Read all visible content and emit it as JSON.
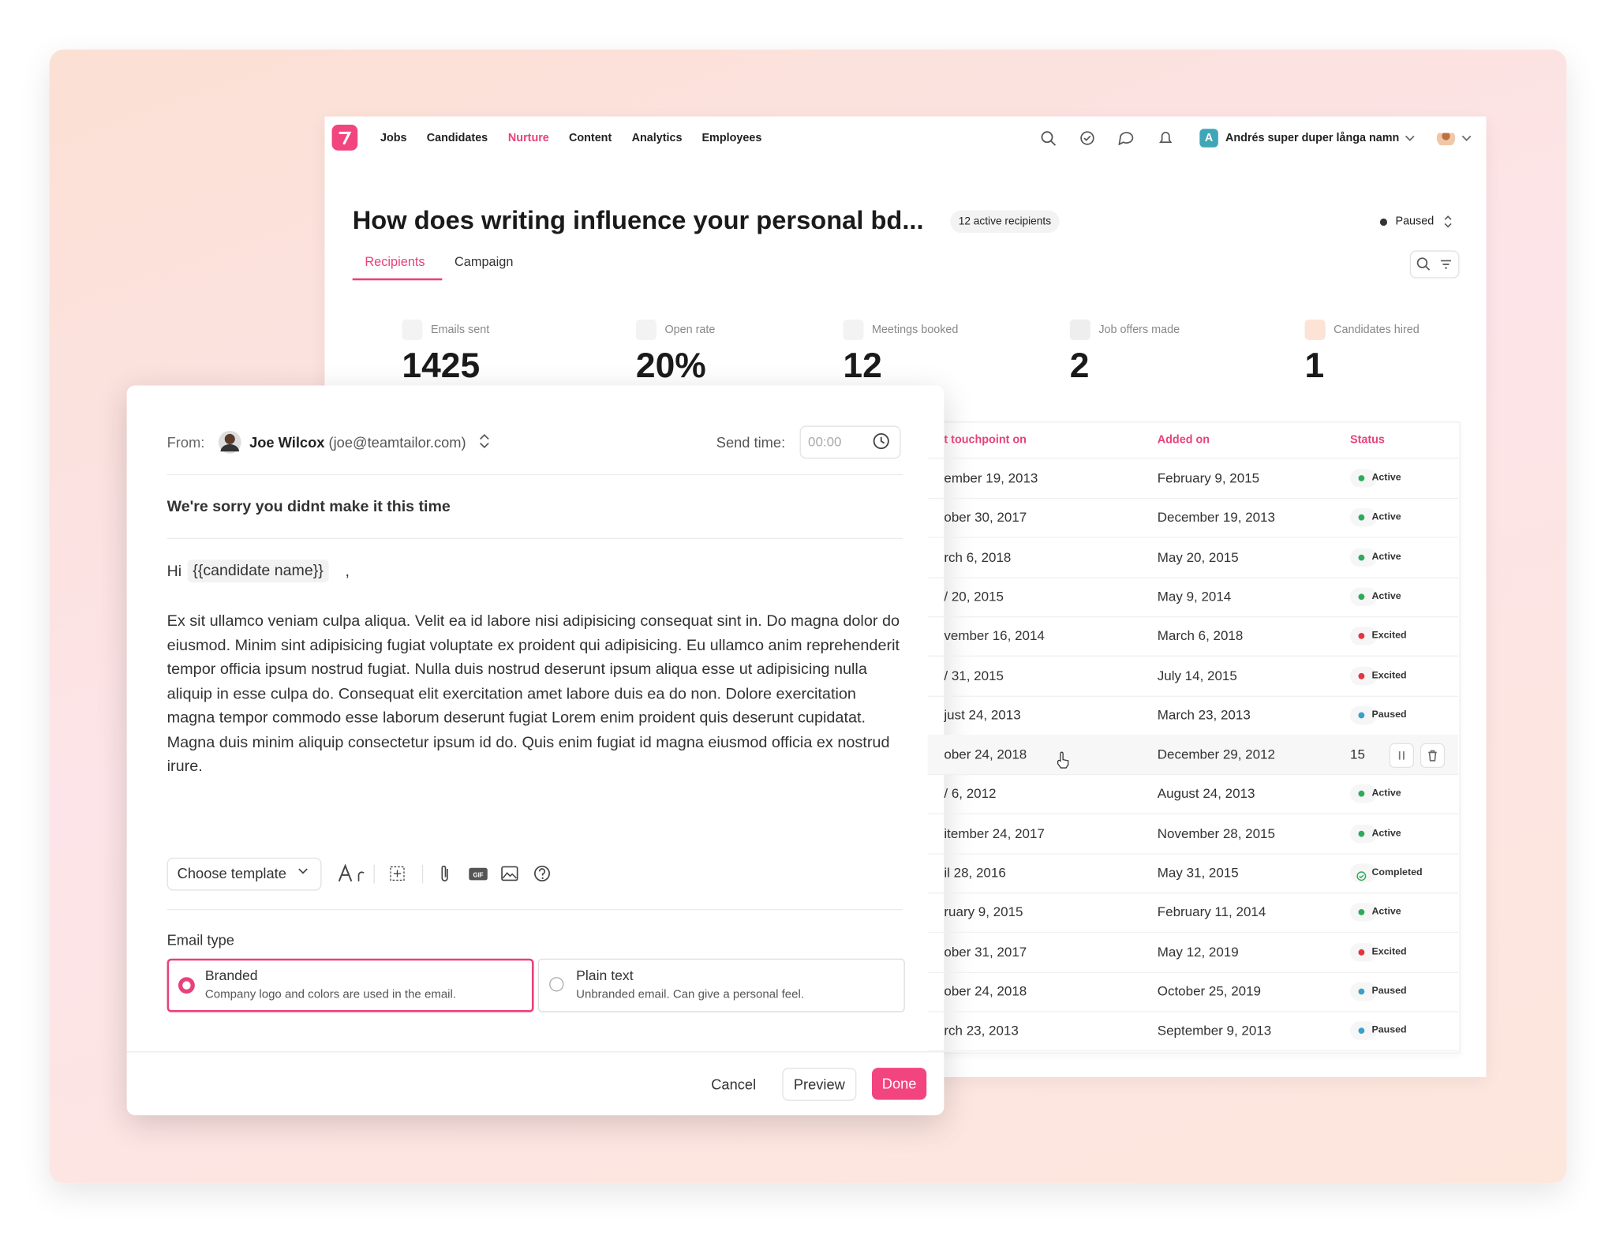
{
  "nav": {
    "items": [
      "Jobs",
      "Candidates",
      "Nurture",
      "Content",
      "Analytics",
      "Employees"
    ],
    "active": 2,
    "account_initial": "A",
    "account_name": "Andrés super duper långa namn"
  },
  "header": {
    "title": "How does writing influence your personal bd...",
    "badge": "12 active recipients",
    "state": "Paused"
  },
  "tabs": {
    "items": [
      "Recipients",
      "Campaign"
    ],
    "active": 0
  },
  "stats": [
    {
      "label": "Emails sent",
      "value": 1425
    },
    {
      "label": "Open rate",
      "value": "20%"
    },
    {
      "label": "Meetings booked",
      "value": 12
    },
    {
      "label": "Job offers made",
      "value": 2
    },
    {
      "label": "Candidates hired",
      "value": 1
    }
  ],
  "table": {
    "columns": [
      "t touchpoint on",
      "Added on",
      "Status"
    ],
    "rows": [
      {
        "touchpoint": "ember 19, 2013",
        "added": "February 9, 2015",
        "status": "Active",
        "status_color": "#2eab5a",
        "status_marker": "dot"
      },
      {
        "touchpoint": "ober 30, 2017",
        "added": "December 19, 2013",
        "status": "Active",
        "status_color": "#2eab5a",
        "status_marker": "dot"
      },
      {
        "touchpoint": "rch 6, 2018",
        "added": "May 20, 2015",
        "status": "Active",
        "status_color": "#2eab5a",
        "status_marker": "dot"
      },
      {
        "touchpoint": "/ 20, 2015",
        "added": "May 9, 2014",
        "status": "Active",
        "status_color": "#2eab5a",
        "status_marker": "dot"
      },
      {
        "touchpoint": "vember 16, 2014",
        "added": "March 6, 2018",
        "status": "Excited",
        "status_color": "#e5343e",
        "status_marker": "dot"
      },
      {
        "touchpoint": "/ 31, 2015",
        "added": "July 14, 2015",
        "status": "Excited",
        "status_color": "#e5343e",
        "status_marker": "dot"
      },
      {
        "touchpoint": "just 24, 2013",
        "added": "March 23, 2013",
        "status": "Paused",
        "status_color": "#3aa0c8",
        "status_marker": "dot"
      },
      {
        "touchpoint": "ober 24, 2018",
        "added": "December 29, 2012",
        "status": "15",
        "status_color": "#333333",
        "status_marker": "actions"
      },
      {
        "touchpoint": "/ 6, 2012",
        "added": "August 24, 2013",
        "status": "Active",
        "status_color": "#2eab5a",
        "status_marker": "dot"
      },
      {
        "touchpoint": "itember 24, 2017",
        "added": "November 28, 2015",
        "status": "Active",
        "status_color": "#2eab5a",
        "status_marker": "dot"
      },
      {
        "touchpoint": "il 28, 2016",
        "added": "May 31, 2015",
        "status": "Completed",
        "status_color": "#2eab5a",
        "status_marker": "check"
      },
      {
        "touchpoint": "ruary 9, 2015",
        "added": "February 11, 2014",
        "status": "Active",
        "status_color": "#2eab5a",
        "status_marker": "dot"
      },
      {
        "touchpoint": "ober 31, 2017",
        "added": "May 12, 2019",
        "status": "Excited",
        "status_color": "#e5343e",
        "status_marker": "dot"
      },
      {
        "touchpoint": "ober 24, 2018",
        "added": "October 25, 2019",
        "status": "Paused",
        "status_color": "#3aa0c8",
        "status_marker": "dot"
      },
      {
        "touchpoint": "rch 23, 2013",
        "added": "September 9, 2013",
        "status": "Paused",
        "status_color": "#3aa0c8",
        "status_marker": "dot"
      }
    ]
  },
  "modal": {
    "from_label": "From:",
    "sender_name": "Joe Wilcox",
    "sender_email": "(joe@teamtailor.com)",
    "send_time_label": "Send time:",
    "send_time_placeholder": "00:00",
    "subject": "We're sorry you didnt make it this time",
    "greeting": "Hi",
    "greeting_tag": "{{candidate name}}",
    "greeting_end": ",",
    "body": "Ex sit ullamco veniam culpa aliqua. Velit ea id labore nisi adipisicing consequat sint in. Do magna dolor do eiusmod. Minim sint adipisicing fugiat voluptate ex proident qui adipisicing. Eu ullamco anim reprehenderit tempor officia ipsum nostrud fugiat. Nulla duis nostrud deserunt ipsum aliqua esse ut adipisicing nulla aliquip in esse culpa do. Consequat elit exercitation amet labore duis ea do non. Dolore exercitation magna tempor commodo esse laborum deserunt fugiat Lorem enim proident quis deserunt cupidatat. Magna duis minim aliquip consectetur ipsum id do. Quis enim fugiat id magna eiusmod officia ex nostrud irure.",
    "template_button": "Choose template",
    "email_type_label": "Email type",
    "options": [
      {
        "title": "Branded",
        "description": "Company logo and colors are used in the email.",
        "selected": true
      },
      {
        "title": "Plain text",
        "description": "Unbranded email. Can give a personal feel.",
        "selected": false
      }
    ],
    "buttons": {
      "cancel": "Cancel",
      "preview": "Preview",
      "done": "Done"
    }
  }
}
